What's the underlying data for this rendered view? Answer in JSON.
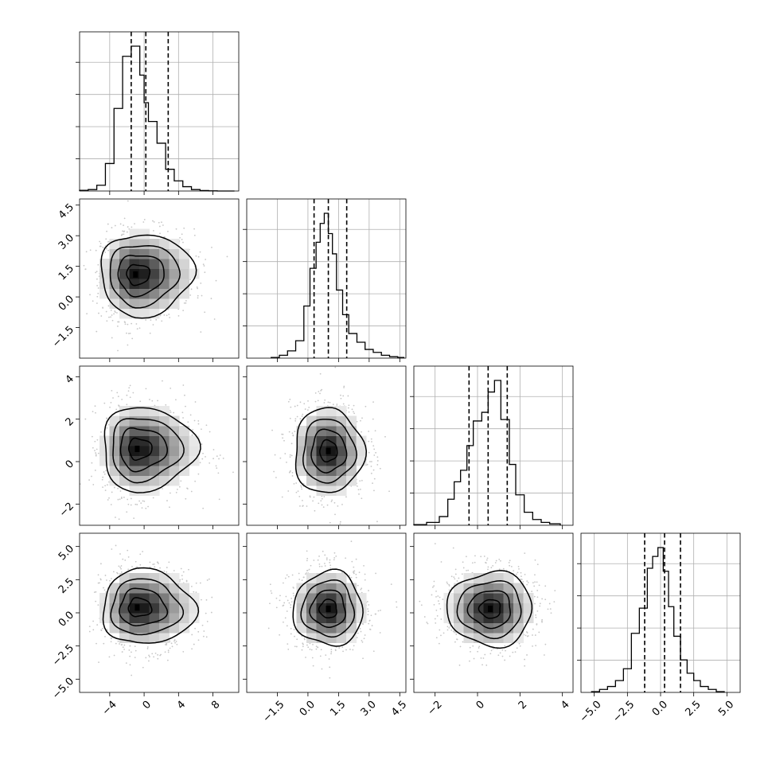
{
  "chart_data": {
    "type": "corner",
    "n_params": 4,
    "grid": true,
    "params": [
      {
        "range": [
          -7.5,
          11
        ],
        "ticks": [
          -4,
          0,
          4,
          8
        ],
        "tick_labels": [
          "−4",
          "0",
          "4",
          "8"
        ],
        "quantiles": [
          -1.5,
          0.2,
          2.8
        ],
        "hist_edges": [
          -7.5,
          -6.5,
          -5.5,
          -4.5,
          -3.5,
          -2.5,
          -1.5,
          -0.5,
          0.0,
          0.5,
          1.5,
          2.5,
          3.5,
          4.5,
          5.5,
          6.5,
          7.5,
          8.5,
          9.5,
          10.5
        ],
        "hist_values": [
          0.005,
          0.01,
          0.04,
          0.19,
          0.57,
          0.93,
          1.0,
          0.8,
          0.61,
          0.48,
          0.33,
          0.15,
          0.07,
          0.03,
          0.01,
          0.003,
          0.001,
          0.0,
          0.0
        ],
        "hist_yticks": 4
      },
      {
        "range": [
          -3.0,
          4.8
        ],
        "ticks": [
          -1.5,
          0.0,
          1.5,
          3.0,
          4.5
        ],
        "tick_labels": [
          "−1.5",
          "0.0",
          "1.5",
          "3.0",
          "4.5"
        ],
        "quantiles": [
          0.3,
          1.0,
          1.9
        ],
        "hist_edges": [
          -1.8,
          -1.4,
          -1.0,
          -0.6,
          -0.2,
          0.1,
          0.4,
          0.6,
          0.8,
          1.0,
          1.2,
          1.4,
          1.7,
          2.0,
          2.4,
          2.8,
          3.2,
          3.6,
          4.0,
          4.4,
          4.7
        ],
        "hist_values": [
          0.005,
          0.02,
          0.05,
          0.12,
          0.36,
          0.62,
          0.8,
          0.93,
          1.0,
          0.86,
          0.72,
          0.47,
          0.3,
          0.17,
          0.11,
          0.06,
          0.04,
          0.02,
          0.01,
          0.005
        ],
        "hist_yticks": 4
      },
      {
        "range": [
          -3.0,
          4.5
        ],
        "ticks": [
          -2,
          0,
          2,
          4
        ],
        "tick_labels": [
          "−2",
          "0",
          "2",
          "4"
        ],
        "quantiles": [
          -0.4,
          0.5,
          1.4
        ],
        "hist_edges": [
          -3.0,
          -2.4,
          -1.8,
          -1.4,
          -1.1,
          -0.8,
          -0.5,
          -0.2,
          0.2,
          0.5,
          0.8,
          1.1,
          1.5,
          1.8,
          2.2,
          2.6,
          3.0,
          3.4,
          3.9
        ],
        "hist_values": [
          0.005,
          0.02,
          0.06,
          0.18,
          0.3,
          0.38,
          0.55,
          0.72,
          0.78,
          0.92,
          1.0,
          0.73,
          0.42,
          0.21,
          0.09,
          0.04,
          0.02,
          0.01
        ],
        "hist_yticks": 4
      },
      {
        "range": [
          -6.0,
          6.0
        ],
        "ticks": [
          -5.0,
          -2.5,
          0.0,
          2.5,
          5.0
        ],
        "tick_labels": [
          "−5.0",
          "−2.5",
          "0.0",
          "2.5",
          "5.0"
        ],
        "quantiles": [
          -1.2,
          0.3,
          1.5
        ],
        "hist_edges": [
          -5.2,
          -4.6,
          -4.0,
          -3.4,
          -2.8,
          -2.2,
          -1.6,
          -1.0,
          -0.6,
          -0.2,
          0.2,
          0.6,
          1.0,
          1.5,
          2.0,
          2.5,
          3.0,
          3.6,
          4.2,
          4.8
        ],
        "hist_values": [
          0.005,
          0.02,
          0.04,
          0.08,
          0.16,
          0.4,
          0.57,
          0.84,
          0.92,
          0.98,
          0.82,
          0.58,
          0.38,
          0.22,
          0.13,
          0.08,
          0.04,
          0.02,
          0.005
        ],
        "hist_yticks": 4
      }
    ],
    "pairs": [
      {
        "x": 0,
        "y": 1,
        "mode": [
          -1.0,
          1.1
        ],
        "sx": 2.5,
        "sy": 1.0
      },
      {
        "x": 0,
        "y": 2,
        "mode": [
          -0.8,
          0.6
        ],
        "sx": 2.5,
        "sy": 1.0
      },
      {
        "x": 1,
        "y": 2,
        "mode": [
          1.0,
          0.5
        ],
        "sx": 0.85,
        "sy": 1.0
      },
      {
        "x": 0,
        "y": 3,
        "mode": [
          -0.8,
          0.4
        ],
        "sx": 2.5,
        "sy": 1.4
      },
      {
        "x": 1,
        "y": 3,
        "mode": [
          1.0,
          0.3
        ],
        "sx": 0.85,
        "sy": 1.4
      },
      {
        "x": 2,
        "y": 3,
        "mode": [
          0.6,
          0.3
        ],
        "sx": 1.0,
        "sy": 1.4
      }
    ]
  }
}
